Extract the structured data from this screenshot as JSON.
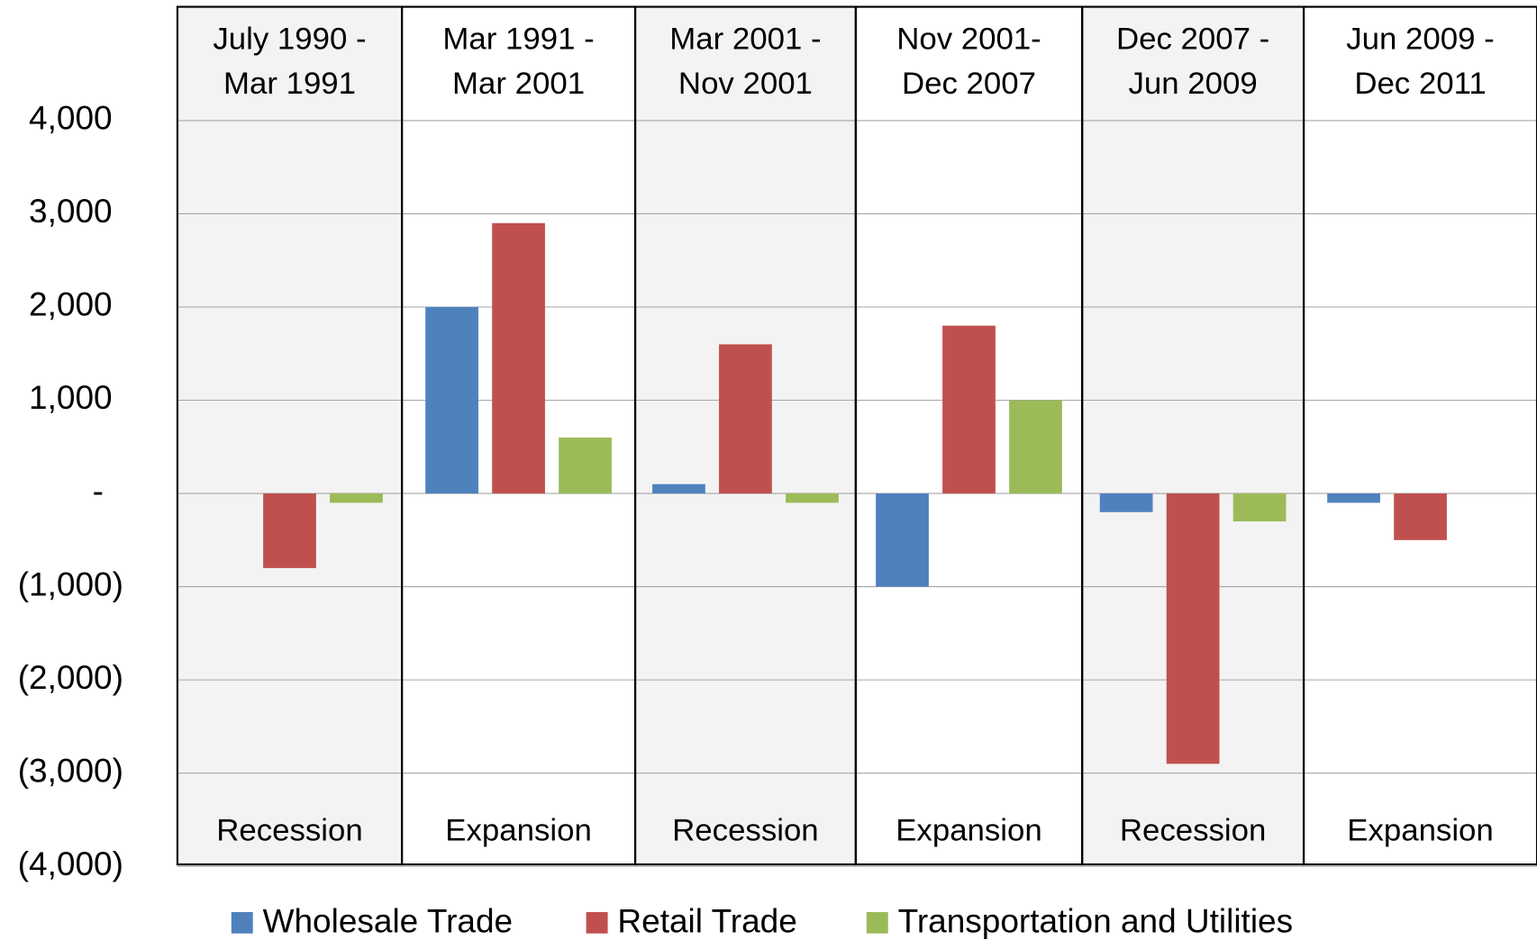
{
  "chart_data": {
    "type": "bar",
    "categories": [
      [
        "July 1990 -",
        "Mar 1991"
      ],
      [
        "Mar 1991 -",
        "Mar  2001"
      ],
      [
        "Mar 2001 -",
        "Nov 2001"
      ],
      [
        "Nov 2001-",
        "Dec 2007"
      ],
      [
        "Dec 2007 -",
        "Jun 2009"
      ],
      [
        "Jun 2009 -",
        "Dec 2011"
      ]
    ],
    "phases": [
      "Recession",
      "Expansion",
      "Recession",
      "Expansion",
      "Recession",
      "Expansion"
    ],
    "series": [
      {
        "name": "Wholesale Trade",
        "color": "#4f81bd",
        "values": [
          0,
          2000,
          100,
          -1000,
          -200,
          -100
        ]
      },
      {
        "name": "Retail Trade",
        "color": "#c0504d",
        "values": [
          -800,
          2900,
          1600,
          1800,
          -2900,
          -500
        ]
      },
      {
        "name": "Transportation and Utilities",
        "color": "#9bbb59",
        "values": [
          -100,
          600,
          -100,
          1000,
          -300,
          0
        ]
      }
    ],
    "ylim": [
      -4000,
      4000
    ],
    "yticks": [
      {
        "value": 4000,
        "label": "4,000"
      },
      {
        "value": 3000,
        "label": "3,000"
      },
      {
        "value": 2000,
        "label": "2,000"
      },
      {
        "value": 1000,
        "label": "1,000"
      },
      {
        "value": 0,
        "label": "-"
      },
      {
        "value": -1000,
        "label": "(1,000)"
      },
      {
        "value": -2000,
        "label": "(2,000)"
      },
      {
        "value": -3000,
        "label": "(3,000)"
      },
      {
        "value": -4000,
        "label": "(4,000)"
      }
    ],
    "grid": true,
    "legend": "bottom"
  }
}
